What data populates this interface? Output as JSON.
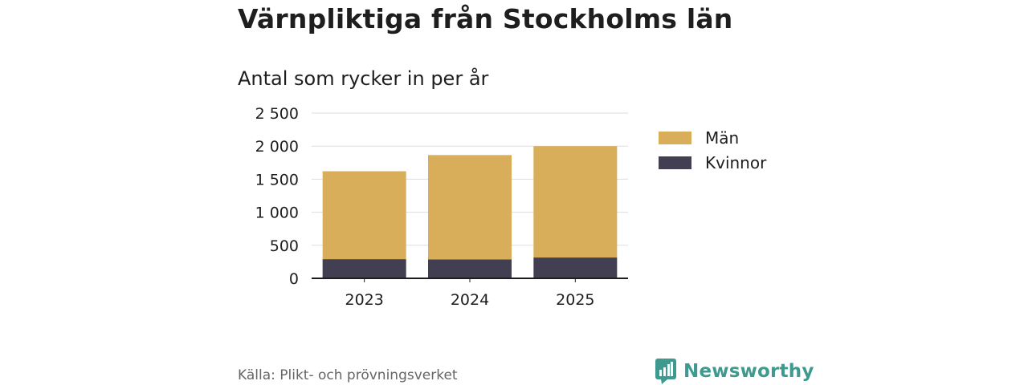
{
  "title": "Värnpliktiga från Stockholms län",
  "subtitle": "Antal som rycker in per år",
  "source": "Källa: Plikt- och prövningsverket",
  "brand": {
    "name": "Newsworthy",
    "icon": "newsworthy-logo-icon",
    "color": "#3e9a8e"
  },
  "chart_data": {
    "type": "bar",
    "stacked": true,
    "categories": [
      "2023",
      "2024",
      "2025"
    ],
    "series": [
      {
        "name": "Kvinnor",
        "color": "#423f52",
        "values": [
          290,
          285,
          315
        ]
      },
      {
        "name": "Män",
        "color": "#d9ae5b",
        "values": [
          1330,
          1580,
          1685
        ]
      }
    ],
    "ylim": [
      0,
      2500
    ],
    "yticks": [
      0,
      500,
      1000,
      1500,
      2000,
      2500
    ],
    "ytick_labels": [
      "0",
      "500",
      "1 000",
      "1 500",
      "2 000",
      "2 500"
    ],
    "legend": [
      {
        "name": "Män",
        "color": "#d9ae5b"
      },
      {
        "name": "Kvinnor",
        "color": "#423f52"
      }
    ],
    "legend_position": "right",
    "grid": true
  }
}
